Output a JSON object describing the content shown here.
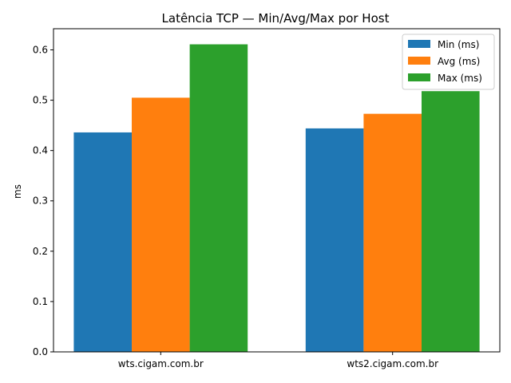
{
  "chart_data": {
    "type": "bar",
    "title": "Latência TCP — Min/Avg/Max por Host",
    "xlabel": "",
    "ylabel": "ms",
    "categories": [
      "wts.cigam.com.br",
      "wts2.cigam.com.br"
    ],
    "series": [
      {
        "name": "Min (ms)",
        "values": [
          0.436,
          0.444
        ],
        "color": "#1f77b4"
      },
      {
        "name": "Avg (ms)",
        "values": [
          0.505,
          0.473
        ],
        "color": "#ff7f0e"
      },
      {
        "name": "Max (ms)",
        "values": [
          0.611,
          0.518
        ],
        "color": "#2ca02c"
      }
    ],
    "ylim": [
      0,
      0.642
    ],
    "yticks": [
      {
        "value": 0.0,
        "label": "0.0"
      },
      {
        "value": 0.1,
        "label": "0.1"
      },
      {
        "value": 0.2,
        "label": "0.2"
      },
      {
        "value": 0.3,
        "label": "0.3"
      },
      {
        "value": 0.4,
        "label": "0.4"
      },
      {
        "value": 0.5,
        "label": "0.5"
      },
      {
        "value": 0.6,
        "label": "0.6"
      }
    ],
    "grid": false,
    "legend_position": "top-right"
  }
}
